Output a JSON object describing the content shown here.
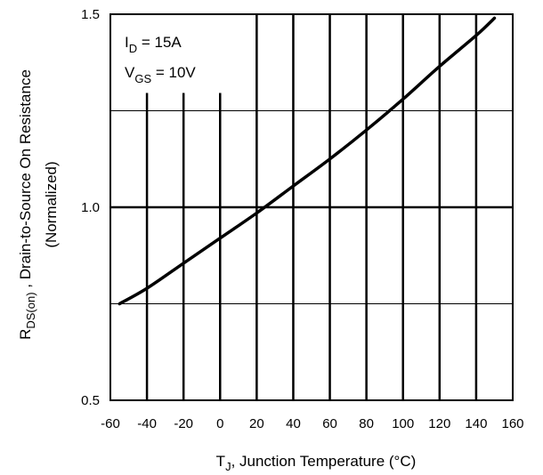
{
  "chart_data": {
    "type": "line",
    "xlabel": {
      "main": "T",
      "sub": "J",
      "rest": ", Junction Temperature (°C)"
    },
    "ylabel": {
      "main": "R",
      "sub": "DS(on)",
      "rest": " , Drain-to-Source On Resistance",
      "line2": "(Normalized)"
    },
    "xlim": [
      -60,
      160
    ],
    "ylim": [
      0.5,
      1.5
    ],
    "x_ticks": [
      -60,
      -40,
      -20,
      0,
      20,
      40,
      60,
      80,
      100,
      120,
      140,
      160
    ],
    "y_ticks": [
      {
        "value": 0.5,
        "label": "0.5"
      },
      {
        "value": 1.0,
        "label": "1.0"
      },
      {
        "value": 1.5,
        "label": "1.5"
      }
    ],
    "minor_y": [
      0.75,
      1.25
    ],
    "annotations": [
      {
        "main": "I",
        "sub": "D",
        "rest": " = 15A"
      },
      {
        "main": "V",
        "sub": "GS",
        "rest": " = 10V"
      }
    ],
    "series": [
      {
        "x": [
          -55,
          -40,
          -20,
          0,
          20,
          40,
          60,
          80,
          100,
          120,
          140,
          150
        ],
        "values": [
          0.75,
          0.79,
          0.855,
          0.92,
          0.985,
          1.055,
          1.125,
          1.2,
          1.28,
          1.365,
          1.445,
          1.49
        ]
      }
    ]
  }
}
